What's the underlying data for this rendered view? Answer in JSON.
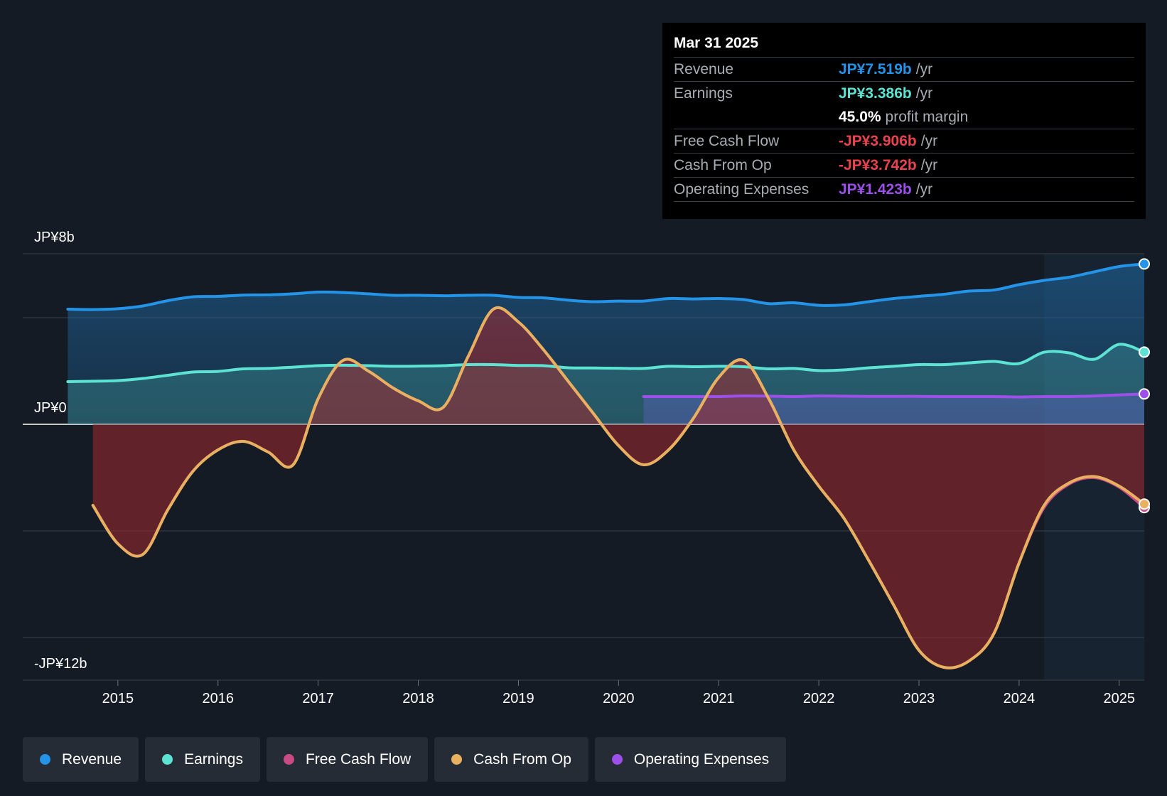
{
  "chart_data": {
    "type": "area",
    "title": "",
    "ylabel_top": "JP¥8b",
    "ylabel_zero": "JP¥0",
    "ylabel_bottom": "-JP¥12b",
    "ylim": [
      -12,
      8
    ],
    "x_ticks": [
      "2015",
      "2016",
      "2017",
      "2018",
      "2019",
      "2020",
      "2021",
      "2022",
      "2023",
      "2024",
      "2025"
    ],
    "x_tick_values": [
      2015,
      2016,
      2017,
      2018,
      2019,
      2020,
      2021,
      2022,
      2023,
      2024,
      2025
    ],
    "xlim": [
      2014.05,
      2025.25
    ],
    "grid_values": [
      8,
      5,
      0,
      -5,
      -10
    ],
    "highlight_from": 2024.25,
    "series": [
      {
        "name": "Revenue",
        "color": "#2394e8",
        "points": [
          [
            2014.5,
            5.4
          ],
          [
            2014.75,
            5.38
          ],
          [
            2015.0,
            5.42
          ],
          [
            2015.25,
            5.55
          ],
          [
            2015.5,
            5.8
          ],
          [
            2015.75,
            5.98
          ],
          [
            2016.0,
            6.0
          ],
          [
            2016.25,
            6.06
          ],
          [
            2016.5,
            6.07
          ],
          [
            2016.75,
            6.12
          ],
          [
            2017.0,
            6.2
          ],
          [
            2017.25,
            6.18
          ],
          [
            2017.5,
            6.12
          ],
          [
            2017.75,
            6.05
          ],
          [
            2018.0,
            6.05
          ],
          [
            2018.25,
            6.03
          ],
          [
            2018.5,
            6.05
          ],
          [
            2018.75,
            6.05
          ],
          [
            2019.0,
            5.95
          ],
          [
            2019.25,
            5.93
          ],
          [
            2019.5,
            5.82
          ],
          [
            2019.75,
            5.75
          ],
          [
            2020.0,
            5.78
          ],
          [
            2020.25,
            5.78
          ],
          [
            2020.5,
            5.9
          ],
          [
            2020.75,
            5.88
          ],
          [
            2021.0,
            5.9
          ],
          [
            2021.25,
            5.85
          ],
          [
            2021.5,
            5.66
          ],
          [
            2021.75,
            5.7
          ],
          [
            2022.0,
            5.58
          ],
          [
            2022.25,
            5.6
          ],
          [
            2022.5,
            5.75
          ],
          [
            2022.75,
            5.9
          ],
          [
            2023.0,
            6.0
          ],
          [
            2023.25,
            6.1
          ],
          [
            2023.5,
            6.25
          ],
          [
            2023.75,
            6.3
          ],
          [
            2024.0,
            6.55
          ],
          [
            2024.25,
            6.75
          ],
          [
            2024.5,
            6.9
          ],
          [
            2024.75,
            7.15
          ],
          [
            2025.0,
            7.4
          ],
          [
            2025.25,
            7.519
          ]
        ]
      },
      {
        "name": "Earnings",
        "color": "#5de3d3",
        "points": [
          [
            2014.5,
            2.0
          ],
          [
            2014.75,
            2.02
          ],
          [
            2015.0,
            2.05
          ],
          [
            2015.25,
            2.15
          ],
          [
            2015.5,
            2.3
          ],
          [
            2015.75,
            2.45
          ],
          [
            2016.0,
            2.48
          ],
          [
            2016.25,
            2.6
          ],
          [
            2016.5,
            2.62
          ],
          [
            2016.75,
            2.68
          ],
          [
            2017.0,
            2.75
          ],
          [
            2017.25,
            2.77
          ],
          [
            2017.5,
            2.75
          ],
          [
            2017.75,
            2.72
          ],
          [
            2018.0,
            2.73
          ],
          [
            2018.25,
            2.75
          ],
          [
            2018.5,
            2.8
          ],
          [
            2018.75,
            2.8
          ],
          [
            2019.0,
            2.76
          ],
          [
            2019.25,
            2.75
          ],
          [
            2019.5,
            2.65
          ],
          [
            2019.75,
            2.64
          ],
          [
            2020.0,
            2.63
          ],
          [
            2020.25,
            2.62
          ],
          [
            2020.5,
            2.72
          ],
          [
            2020.75,
            2.7
          ],
          [
            2021.0,
            2.72
          ],
          [
            2021.25,
            2.7
          ],
          [
            2021.5,
            2.6
          ],
          [
            2021.75,
            2.62
          ],
          [
            2022.0,
            2.52
          ],
          [
            2022.25,
            2.55
          ],
          [
            2022.5,
            2.65
          ],
          [
            2022.75,
            2.72
          ],
          [
            2023.0,
            2.8
          ],
          [
            2023.25,
            2.8
          ],
          [
            2023.5,
            2.88
          ],
          [
            2023.75,
            2.95
          ],
          [
            2024.0,
            2.85
          ],
          [
            2024.25,
            3.38
          ],
          [
            2024.5,
            3.35
          ],
          [
            2024.75,
            3.05
          ],
          [
            2025.0,
            3.75
          ],
          [
            2025.25,
            3.386
          ]
        ]
      },
      {
        "name": "Free Cash Flow",
        "color": "#c94a85",
        "points": [
          [
            2014.75,
            -3.8
          ],
          [
            2015.0,
            -5.6
          ],
          [
            2015.25,
            -6.1
          ],
          [
            2015.5,
            -4.0
          ],
          [
            2015.75,
            -2.2
          ],
          [
            2016.0,
            -1.2
          ],
          [
            2016.25,
            -0.8
          ],
          [
            2016.5,
            -1.3
          ],
          [
            2016.75,
            -1.9
          ],
          [
            2017.0,
            1.2
          ],
          [
            2017.25,
            3.0
          ],
          [
            2017.5,
            2.5
          ],
          [
            2017.75,
            1.7
          ],
          [
            2018.0,
            1.1
          ],
          [
            2018.25,
            0.8
          ],
          [
            2018.5,
            3.2
          ],
          [
            2018.75,
            5.4
          ],
          [
            2019.0,
            4.8
          ],
          [
            2019.25,
            3.5
          ],
          [
            2019.5,
            2.0
          ],
          [
            2019.75,
            0.5
          ],
          [
            2020.0,
            -1.0
          ],
          [
            2020.25,
            -1.9
          ],
          [
            2020.5,
            -1.2
          ],
          [
            2020.75,
            0.3
          ],
          [
            2021.0,
            2.2
          ],
          [
            2021.25,
            3.0
          ],
          [
            2021.5,
            1.2
          ],
          [
            2021.75,
            -1.2
          ],
          [
            2022.0,
            -2.9
          ],
          [
            2022.25,
            -4.4
          ],
          [
            2022.5,
            -6.4
          ],
          [
            2022.75,
            -8.5
          ],
          [
            2023.0,
            -10.6
          ],
          [
            2023.25,
            -11.4
          ],
          [
            2023.5,
            -11.1
          ],
          [
            2023.75,
            -9.8
          ],
          [
            2024.0,
            -6.5
          ],
          [
            2024.25,
            -3.9
          ],
          [
            2024.5,
            -2.8
          ],
          [
            2024.75,
            -2.5
          ],
          [
            2025.0,
            -2.95
          ],
          [
            2025.25,
            -3.906
          ]
        ]
      },
      {
        "name": "Cash From Op",
        "color": "#e8b160",
        "points": [
          [
            2014.75,
            -3.8
          ],
          [
            2015.0,
            -5.6
          ],
          [
            2015.25,
            -6.1
          ],
          [
            2015.5,
            -4.0
          ],
          [
            2015.75,
            -2.2
          ],
          [
            2016.0,
            -1.2
          ],
          [
            2016.25,
            -0.8
          ],
          [
            2016.5,
            -1.3
          ],
          [
            2016.75,
            -1.9
          ],
          [
            2017.0,
            1.2
          ],
          [
            2017.25,
            3.0
          ],
          [
            2017.5,
            2.5
          ],
          [
            2017.75,
            1.7
          ],
          [
            2018.0,
            1.1
          ],
          [
            2018.25,
            0.8
          ],
          [
            2018.5,
            3.2
          ],
          [
            2018.75,
            5.4
          ],
          [
            2019.0,
            4.8
          ],
          [
            2019.25,
            3.5
          ],
          [
            2019.5,
            2.0
          ],
          [
            2019.75,
            0.5
          ],
          [
            2020.0,
            -1.0
          ],
          [
            2020.25,
            -1.9
          ],
          [
            2020.5,
            -1.2
          ],
          [
            2020.75,
            0.3
          ],
          [
            2021.0,
            2.2
          ],
          [
            2021.25,
            3.0
          ],
          [
            2021.5,
            1.2
          ],
          [
            2021.75,
            -1.2
          ],
          [
            2022.0,
            -2.9
          ],
          [
            2022.25,
            -4.4
          ],
          [
            2022.5,
            -6.4
          ],
          [
            2022.75,
            -8.5
          ],
          [
            2023.0,
            -10.6
          ],
          [
            2023.25,
            -11.4
          ],
          [
            2023.5,
            -11.1
          ],
          [
            2023.75,
            -9.8
          ],
          [
            2024.0,
            -6.5
          ],
          [
            2024.25,
            -3.8
          ],
          [
            2024.5,
            -2.75
          ],
          [
            2024.75,
            -2.45
          ],
          [
            2025.0,
            -2.9
          ],
          [
            2025.25,
            -3.742
          ]
        ]
      },
      {
        "name": "Operating Expenses",
        "color": "#9d4fe9",
        "points": [
          [
            2020.25,
            1.3
          ],
          [
            2020.5,
            1.3
          ],
          [
            2020.75,
            1.3
          ],
          [
            2021.0,
            1.3
          ],
          [
            2021.25,
            1.33
          ],
          [
            2021.5,
            1.32
          ],
          [
            2021.75,
            1.3
          ],
          [
            2022.0,
            1.33
          ],
          [
            2022.25,
            1.32
          ],
          [
            2022.5,
            1.31
          ],
          [
            2022.75,
            1.31
          ],
          [
            2023.0,
            1.31
          ],
          [
            2023.25,
            1.3
          ],
          [
            2023.5,
            1.3
          ],
          [
            2023.75,
            1.3
          ],
          [
            2024.0,
            1.28
          ],
          [
            2024.25,
            1.3
          ],
          [
            2024.5,
            1.3
          ],
          [
            2024.75,
            1.33
          ],
          [
            2025.0,
            1.38
          ],
          [
            2025.25,
            1.423
          ]
        ]
      }
    ]
  },
  "tooltip": {
    "date": "Mar 31 2025",
    "rows": [
      {
        "label": "Revenue",
        "value": "JP¥7.519b",
        "unit": "/yr",
        "color": "#2394e8"
      },
      {
        "label": "Earnings",
        "value": "JP¥3.386b",
        "unit": "/yr",
        "color": "#5de3d3"
      },
      {
        "label": "",
        "value": "45.0%",
        "unit": "profit margin",
        "color": "#ffffff"
      },
      {
        "label": "Free Cash Flow",
        "value": "-JP¥3.906b",
        "unit": "/yr",
        "color": "#e8434e"
      },
      {
        "label": "Cash From Op",
        "value": "-JP¥3.742b",
        "unit": "/yr",
        "color": "#e8434e"
      },
      {
        "label": "Operating Expenses",
        "value": "JP¥1.423b",
        "unit": "/yr",
        "color": "#9d4fe9"
      }
    ]
  },
  "legend": [
    {
      "label": "Revenue",
      "color": "#2394e8"
    },
    {
      "label": "Earnings",
      "color": "#5de3d3"
    },
    {
      "label": "Free Cash Flow",
      "color": "#c94a85"
    },
    {
      "label": "Cash From Op",
      "color": "#e8b160"
    },
    {
      "label": "Operating Expenses",
      "color": "#9d4fe9"
    }
  ]
}
